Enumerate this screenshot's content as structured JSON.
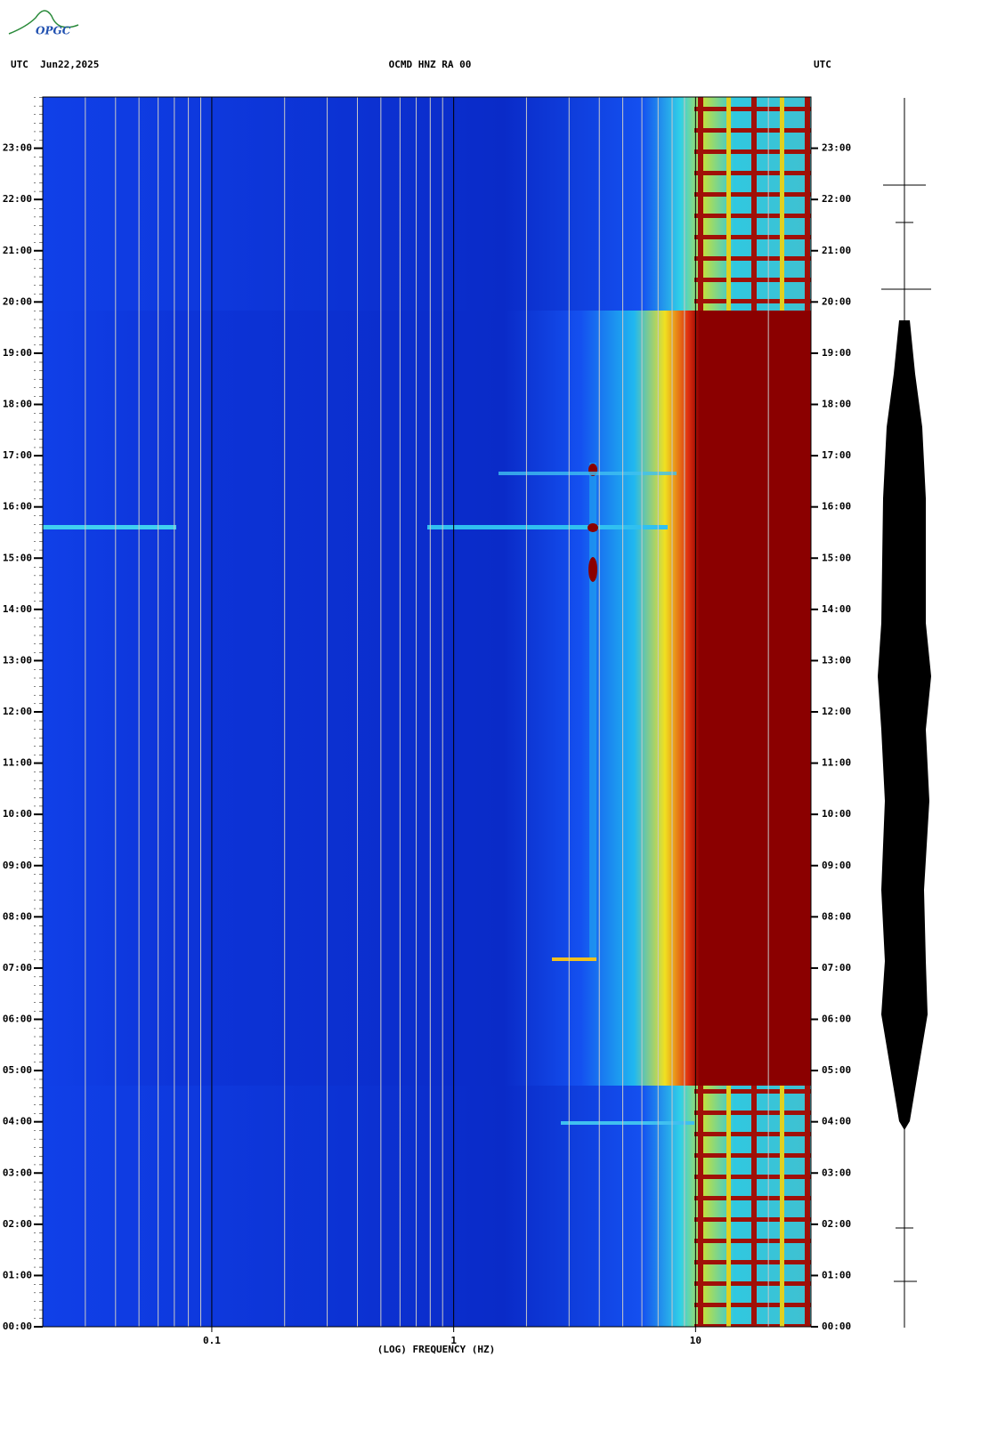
{
  "chart_data": {
    "type": "spectrogram",
    "logo": "OPGC",
    "title_left": "UTC  Jun22,2025",
    "title": "OCMD HNZ RA 00",
    "title_right": "UTC",
    "xlabel": "(LOG) FREQUENCY (HZ)",
    "xscale": "log",
    "xlim": [
      0.02,
      30
    ],
    "xticks": [
      0.1,
      1,
      10
    ],
    "xgrid": [
      0.03,
      0.04,
      0.05,
      0.06,
      0.07,
      0.08,
      0.09,
      0.2,
      0.3,
      0.4,
      0.5,
      0.6,
      0.7,
      0.8,
      0.9,
      2,
      3,
      4,
      5,
      6,
      7,
      8,
      9,
      20
    ],
    "ylim": [
      0,
      24
    ],
    "yticks": [
      {
        "value": 0,
        "label": "00:00"
      },
      {
        "value": 1,
        "label": "01:00"
      },
      {
        "value": 2,
        "label": "02:00"
      },
      {
        "value": 3,
        "label": "03:00"
      },
      {
        "value": 4,
        "label": "04:00"
      },
      {
        "value": 5,
        "label": "05:00"
      },
      {
        "value": 6,
        "label": "06:00"
      },
      {
        "value": 7,
        "label": "07:00"
      },
      {
        "value": 8,
        "label": "08:00"
      },
      {
        "value": 9,
        "label": "09:00"
      },
      {
        "value": 10,
        "label": "10:00"
      },
      {
        "value": 11,
        "label": "11:00"
      },
      {
        "value": 12,
        "label": "12:00"
      },
      {
        "value": 13,
        "label": "13:00"
      },
      {
        "value": 14,
        "label": "14:00"
      },
      {
        "value": 15,
        "label": "15:00"
      },
      {
        "value": 16,
        "label": "16:00"
      },
      {
        "value": 17,
        "label": "17:00"
      },
      {
        "value": 18,
        "label": "18:00"
      },
      {
        "value": 19,
        "label": "19:00"
      },
      {
        "value": 20,
        "label": "20:00"
      },
      {
        "value": 21,
        "label": "21:00"
      },
      {
        "value": 22,
        "label": "22:00"
      },
      {
        "value": 23,
        "label": "23:00"
      }
    ]
  }
}
